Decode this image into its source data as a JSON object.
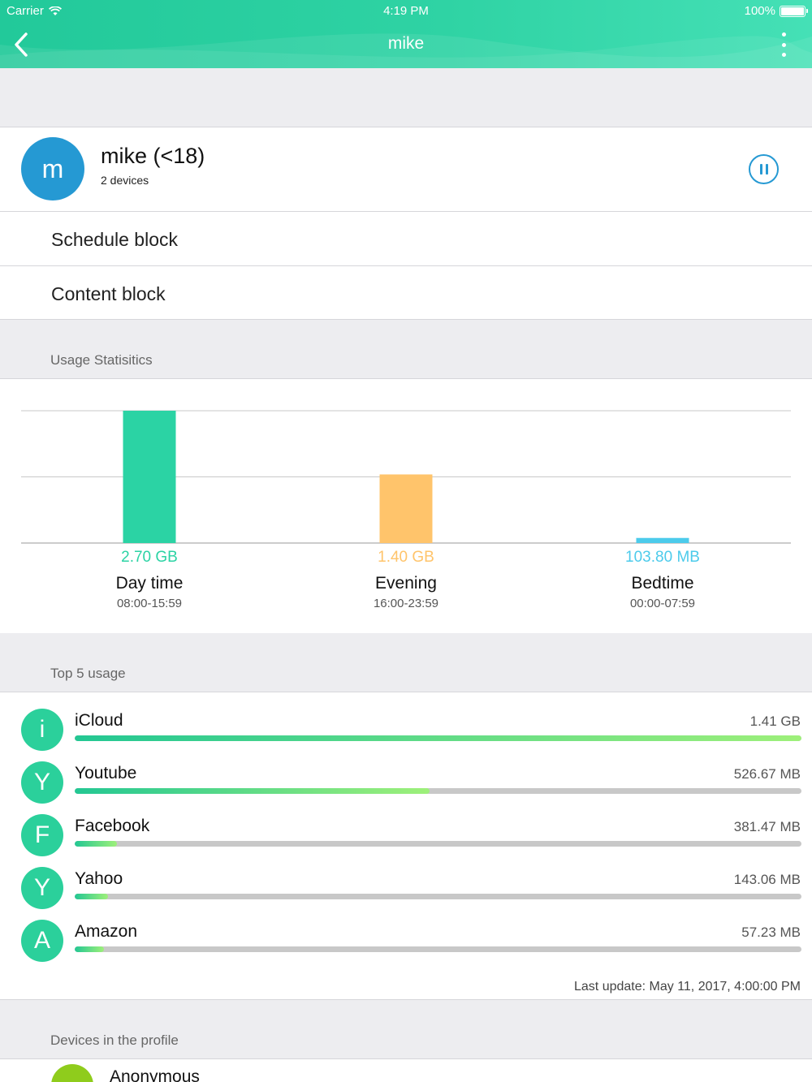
{
  "status_bar": {
    "carrier": "Carrier",
    "time": "4:19 PM",
    "battery": "100%"
  },
  "nav": {
    "title": "mike",
    "back_icon": "chevron-left-icon",
    "more_icon": "more-vertical-icon"
  },
  "profile": {
    "initial": "m",
    "name": "mike (<18)",
    "devices": "2 devices",
    "avatar_color": "#2599d3",
    "pause_icon": "pause-icon"
  },
  "menu": [
    {
      "label": "Schedule block"
    },
    {
      "label": "Content block"
    }
  ],
  "usage_section": {
    "title": "Usage Statisitics"
  },
  "chart_data": {
    "type": "bar",
    "categories": [
      "Day time",
      "Evening",
      "Bedtime"
    ],
    "ranges": [
      "08:00-15:59",
      "16:00-23:59",
      "00:00-07:59"
    ],
    "values_gb": [
      2.7,
      1.4,
      0.1038
    ],
    "value_labels": [
      "2.70 GB",
      "1.40 GB",
      "103.80 MB"
    ],
    "colors": [
      "#2bd3a4",
      "#ffc46b",
      "#4ccbeb"
    ],
    "ylim": [
      0,
      2.7
    ],
    "grid": true
  },
  "top5": {
    "title": "Top 5 usage",
    "apps": [
      {
        "initial": "i",
        "name": "iCloud",
        "size": "1.41 GB",
        "fraction": 1.0
      },
      {
        "initial": "Y",
        "name": "Youtube",
        "size": "526.67 MB",
        "fraction": 0.488
      },
      {
        "initial": "F",
        "name": "Facebook",
        "size": "381.47 MB",
        "fraction": 0.058
      },
      {
        "initial": "Y",
        "name": "Yahoo",
        "size": "143.06 MB",
        "fraction": 0.046
      },
      {
        "initial": "A",
        "name": "Amazon",
        "size": "57.23 MB",
        "fraction": 0.04
      }
    ],
    "last_update": "Last update: May 11, 2017, 4:00:00 PM"
  },
  "devices_section": {
    "title": "Devices in the profile",
    "first_device": "Anonymous",
    "device_color": "#8fcc1c"
  }
}
